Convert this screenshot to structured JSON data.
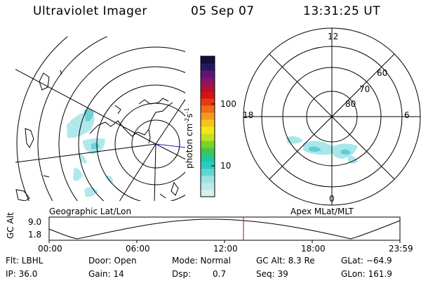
{
  "header": {
    "instrument": "Ultraviolet Imager",
    "date": "05 Sep 07",
    "time": "13:31:25 UT"
  },
  "left_panel": {
    "caption": "Geographic Lat/Lon"
  },
  "right_panel": {
    "caption": "Apex MLat/MLT",
    "mlt_labels": [
      "12",
      "18",
      "6",
      "0"
    ],
    "lat_labels": [
      "60",
      "70",
      "80"
    ]
  },
  "colorbar": {
    "label": "photon cm",
    "exp1": "-2",
    "mid": "s",
    "exp2": "-1",
    "tick_100": "100",
    "tick_10": "10",
    "colors": [
      "#d8f0f0",
      "#c0e8ea",
      "#9fe2e4",
      "#62d7d0",
      "#2ecbc1",
      "#22c69a",
      "#3ec84e",
      "#7ad32a",
      "#c8e01c",
      "#f5e61c",
      "#f6c41a",
      "#f59b1a",
      "#f06a18",
      "#e93a16",
      "#d41414",
      "#b0103c",
      "#8a1464",
      "#5b1778",
      "#2a1660",
      "#11113a"
    ]
  },
  "timeline": {
    "axis_label": "GC Alt",
    "ymax": "9.0",
    "ymin": "1.8",
    "ticks": [
      "00:00",
      "06:00",
      "12:00",
      "18:00",
      "23:59"
    ],
    "marker_color": "#cc0000"
  },
  "status": {
    "filter": "Flt: LBHL",
    "ip": "IP: 36.0",
    "door": "Door: Open",
    "gain": "Gain: 14",
    "mode": "Mode: Normal",
    "dsp_label": "Dsp:",
    "dsp_value": "0.7",
    "gc_alt": "GC Alt: 8.3 Re",
    "seq": "Seq: 39",
    "glat": "GLat: −64.9",
    "glon": "GLon: 161.9"
  }
}
